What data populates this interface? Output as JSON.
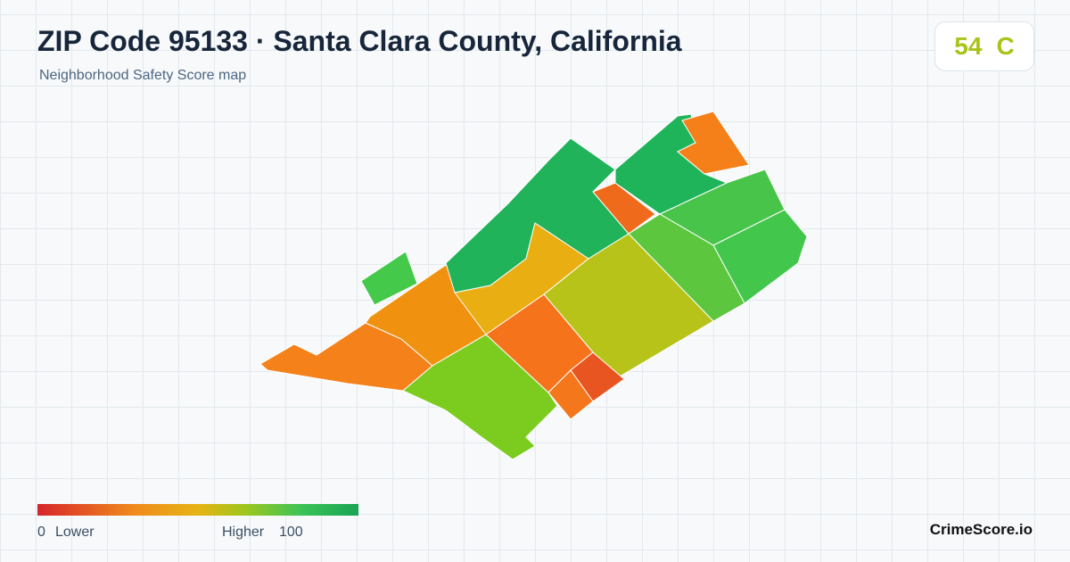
{
  "header": {
    "title": "ZIP Code 95133 · Santa Clara County, California",
    "subtitle": "Neighborhood Safety Score map"
  },
  "score": {
    "value": "54",
    "grade": "C"
  },
  "legend": {
    "min": "0",
    "low_label": "Lower",
    "high_label": "Higher",
    "max": "100"
  },
  "brand": "CrimeScore.io"
}
